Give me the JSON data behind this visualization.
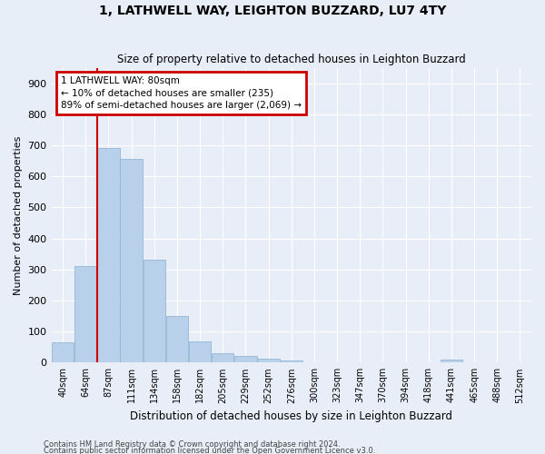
{
  "title": "1, LATHWELL WAY, LEIGHTON BUZZARD, LU7 4TY",
  "subtitle": "Size of property relative to detached houses in Leighton Buzzard",
  "xlabel": "Distribution of detached houses by size in Leighton Buzzard",
  "ylabel": "Number of detached properties",
  "footnote1": "Contains HM Land Registry data © Crown copyright and database right 2024.",
  "footnote2": "Contains public sector information licensed under the Open Government Licence v3.0.",
  "annotation_title": "1 LATHWELL WAY: 80sqm",
  "annotation_line1": "← 10% of detached houses are smaller (235)",
  "annotation_line2": "89% of semi-detached houses are larger (2,069) →",
  "property_size_bin": 1.5,
  "bar_labels": [
    "40sqm",
    "64sqm",
    "87sqm",
    "111sqm",
    "134sqm",
    "158sqm",
    "182sqm",
    "205sqm",
    "229sqm",
    "252sqm",
    "276sqm",
    "300sqm",
    "323sqm",
    "347sqm",
    "370sqm",
    "394sqm",
    "418sqm",
    "441sqm",
    "465sqm",
    "488sqm",
    "512sqm"
  ],
  "bar_values": [
    65,
    310,
    690,
    655,
    330,
    150,
    68,
    30,
    20,
    12,
    8,
    0,
    0,
    0,
    0,
    0,
    0,
    10,
    0,
    0,
    0
  ],
  "bar_color": "#b8d0ea",
  "bar_edge_color": "#8ab0d0",
  "background_color": "#e8eef8",
  "grid_color": "#ffffff",
  "annotation_box_color": "#cc0000",
  "vline_color": "#cc0000",
  "ylim": [
    0,
    950
  ],
  "yticks": [
    0,
    100,
    200,
    300,
    400,
    500,
    600,
    700,
    800,
    900
  ],
  "title_fontsize": 10,
  "subtitle_fontsize": 8.5
}
